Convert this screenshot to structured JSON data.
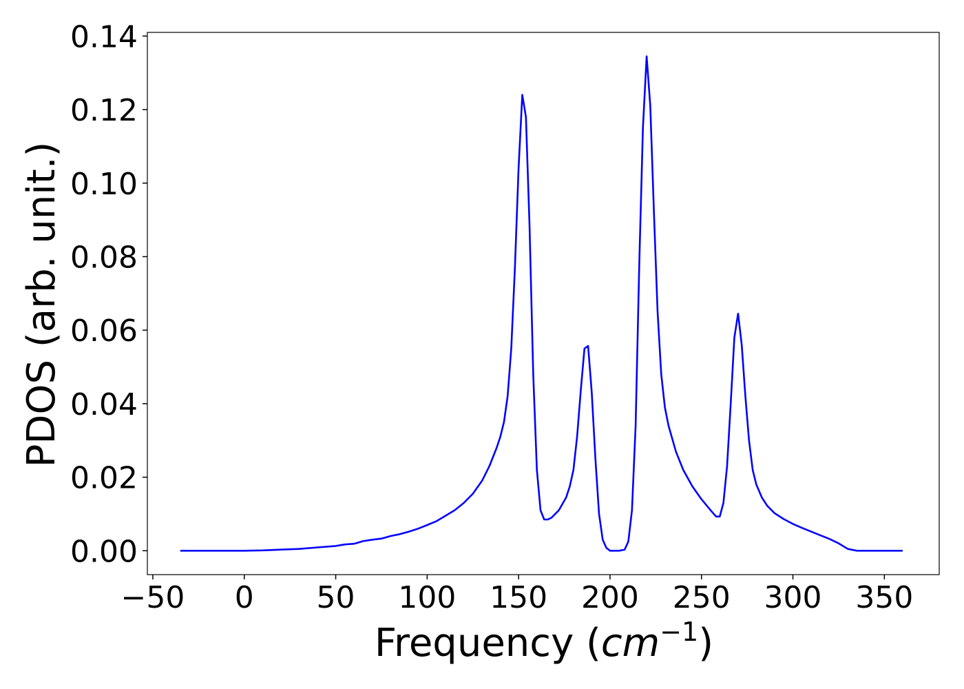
{
  "chart_data": {
    "type": "line",
    "xlabel": "Frequency (",
    "xlabel_math_base": "cm",
    "xlabel_math_exp": "−1",
    "xlabel_close": ")",
    "ylabel": "PDOS (arb. unit.)",
    "xlim": [
      -53,
      380
    ],
    "ylim": [
      -0.0065,
      0.141
    ],
    "xticks": [
      -50,
      0,
      50,
      100,
      150,
      200,
      250,
      300,
      350
    ],
    "xtick_labels": [
      "−50",
      "0",
      "50",
      "100",
      "150",
      "200",
      "250",
      "300",
      "350"
    ],
    "yticks": [
      0.0,
      0.02,
      0.04,
      0.06,
      0.08,
      0.1,
      0.12,
      0.14
    ],
    "ytick_labels": [
      "0.00",
      "0.02",
      "0.04",
      "0.06",
      "0.08",
      "0.10",
      "0.12",
      "0.14"
    ],
    "grid": false,
    "series": [
      {
        "color": "#0000ff",
        "x": [
          -35,
          0,
          10,
          20,
          30,
          40,
          50,
          55,
          60,
          65,
          70,
          75,
          80,
          85,
          90,
          95,
          100,
          105,
          110,
          115,
          120,
          125,
          130,
          134,
          138,
          140,
          142,
          144,
          146,
          148,
          150,
          152,
          154,
          156,
          158,
          160,
          162,
          164,
          166,
          168,
          172,
          176,
          178,
          180,
          182,
          184,
          186,
          188,
          190,
          192,
          194,
          196,
          198,
          200,
          205,
          208,
          210,
          212,
          214,
          216,
          218,
          220,
          222,
          224,
          226,
          228,
          230,
          232,
          236,
          240,
          245,
          250,
          255,
          258,
          260,
          262,
          264,
          266,
          268,
          270,
          272,
          274,
          276,
          278,
          280,
          283,
          286,
          290,
          295,
          300,
          305,
          310,
          315,
          320,
          325,
          330,
          335,
          340,
          360
        ],
        "y": [
          0.0,
          0.0,
          0.0001,
          0.0003,
          0.0005,
          0.0009,
          0.0013,
          0.0017,
          0.0019,
          0.0026,
          0.003,
          0.0033,
          0.004,
          0.0045,
          0.0052,
          0.006,
          0.007,
          0.008,
          0.0095,
          0.011,
          0.013,
          0.0155,
          0.019,
          0.023,
          0.028,
          0.031,
          0.035,
          0.042,
          0.055,
          0.077,
          0.104,
          0.124,
          0.118,
          0.088,
          0.048,
          0.022,
          0.011,
          0.0085,
          0.0085,
          0.009,
          0.011,
          0.0145,
          0.0175,
          0.022,
          0.031,
          0.0435,
          0.055,
          0.0557,
          0.043,
          0.025,
          0.01,
          0.003,
          0.0008,
          0.0,
          0.0,
          0.0003,
          0.0025,
          0.011,
          0.034,
          0.078,
          0.115,
          0.1345,
          0.121,
          0.092,
          0.065,
          0.048,
          0.039,
          0.034,
          0.027,
          0.022,
          0.0175,
          0.014,
          0.011,
          0.0093,
          0.0093,
          0.013,
          0.023,
          0.04,
          0.058,
          0.0645,
          0.056,
          0.042,
          0.03,
          0.022,
          0.018,
          0.0145,
          0.0122,
          0.0102,
          0.0086,
          0.0073,
          0.0062,
          0.0052,
          0.0042,
          0.0032,
          0.002,
          0.0005,
          0.0,
          0.0,
          0.0
        ]
      }
    ]
  }
}
